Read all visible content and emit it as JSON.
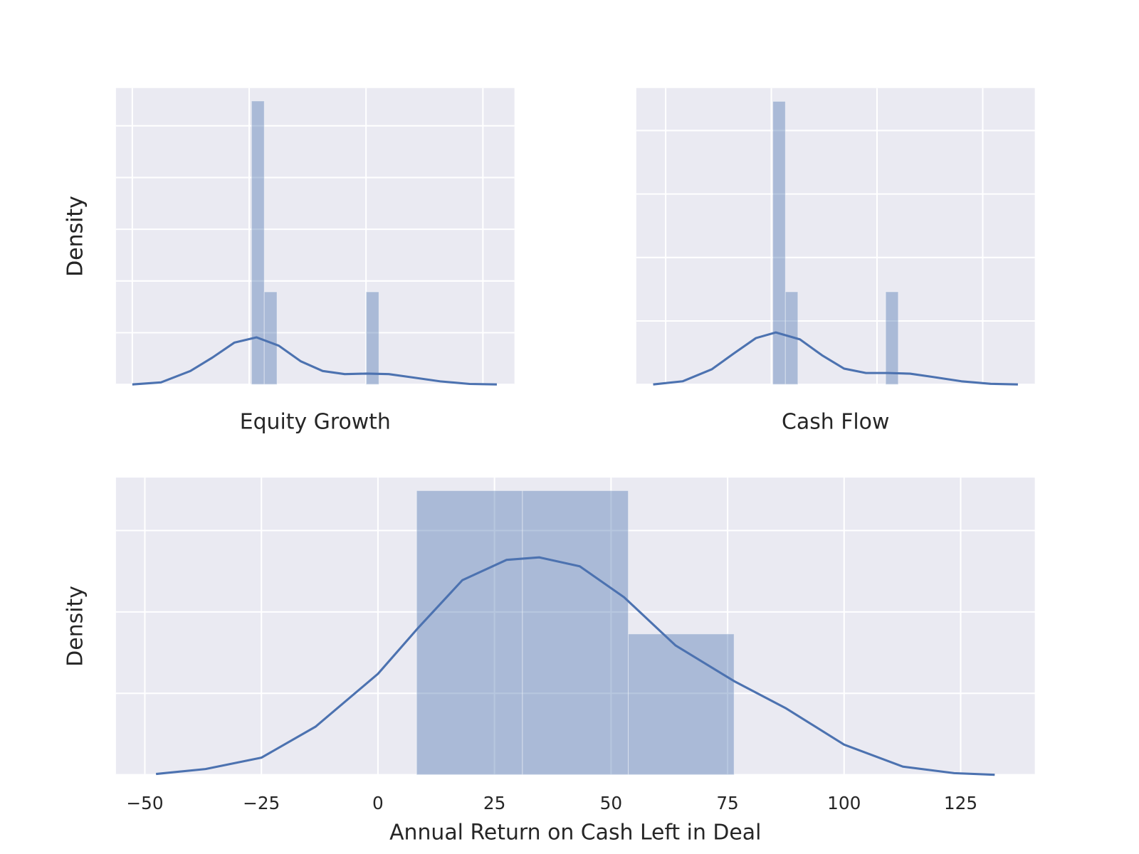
{
  "chart_data": [
    {
      "type": "histogram",
      "xlabel": "Equity Growth",
      "ylabel": "Density",
      "color": "#4c72b0",
      "grid": true,
      "tick_labels": false,
      "xlim": [
        -0.14,
        3.27
      ],
      "ylim": [
        0,
        5.73
      ],
      "xticks": [
        0,
        1,
        2,
        3
      ],
      "yticks": [
        0,
        1,
        2,
        3,
        4,
        5
      ],
      "bins": [
        1.02,
        1.129,
        1.238,
        1.347,
        1.456,
        1.565,
        1.674,
        1.783,
        1.892,
        2.001,
        2.11
      ],
      "values": [
        5.48,
        1.79,
        0,
        0,
        0,
        0,
        0,
        0,
        0,
        1.79
      ],
      "kde_x": [
        0,
        0.245,
        0.497,
        0.686,
        0.874,
        1.063,
        1.252,
        1.44,
        1.629,
        1.818,
        2.006,
        2.195,
        2.384,
        2.635,
        2.887,
        3.119
      ],
      "kde_y": [
        0,
        0.04,
        0.26,
        0.52,
        0.81,
        0.91,
        0.75,
        0.45,
        0.26,
        0.2,
        0.21,
        0.2,
        0.14,
        0.06,
        0.01,
        0
      ]
    },
    {
      "type": "histogram",
      "xlabel": "Cash Flow",
      "ylabel": "Density",
      "color": "#4c72b0",
      "grid": true,
      "tick_labels": false,
      "xlim": [
        -0.278,
        3.493
      ],
      "ylim": [
        0,
        4.67
      ],
      "xticks": [
        0,
        1,
        2,
        3
      ],
      "yticks": [
        0,
        1,
        2,
        3,
        4
      ],
      "bins": [
        1.014,
        1.133,
        1.251,
        1.37,
        1.489,
        1.608,
        1.726,
        1.845,
        1.964,
        2.082,
        2.201
      ],
      "values": [
        4.46,
        1.46,
        0,
        0,
        0,
        0,
        0,
        0,
        0,
        1.46
      ],
      "kde_x": [
        -0.118,
        0.16,
        0.438,
        0.646,
        0.854,
        1.042,
        1.271,
        1.479,
        1.688,
        1.896,
        2.104,
        2.313,
        2.521,
        2.799,
        3.076,
        3.333
      ],
      "kde_y": [
        0,
        0.05,
        0.24,
        0.49,
        0.73,
        0.82,
        0.71,
        0.46,
        0.25,
        0.18,
        0.18,
        0.17,
        0.12,
        0.05,
        0.01,
        0
      ]
    },
    {
      "type": "histogram",
      "xlabel": "Annual Return on Cash Left in Deal",
      "ylabel": "Density",
      "color": "#4c72b0",
      "grid": true,
      "tick_labels": true,
      "xlim": [
        -56.2,
        140.9
      ],
      "ylim": [
        0,
        3.65
      ],
      "xticks": [
        {
          "value": -50,
          "label": "−50"
        },
        {
          "value": -25,
          "label": "−25"
        },
        0,
        25,
        50,
        75,
        100,
        125
      ],
      "yticks": [
        0,
        1,
        2,
        3
      ],
      "bins": [
        8.3,
        31.0,
        53.7,
        76.4
      ],
      "values": [
        3.49,
        3.49,
        1.73
      ],
      "kde_x": [
        -47.6,
        -37.0,
        -25.0,
        -13.4,
        0,
        8.7,
        18.1,
        27.6,
        34.6,
        43.3,
        52.8,
        63.8,
        76.4,
        87.4,
        100,
        112.6,
        123.6,
        132.3
      ],
      "kde_y": [
        0.01,
        0.07,
        0.21,
        0.59,
        1.24,
        1.81,
        2.39,
        2.64,
        2.67,
        2.56,
        2.18,
        1.59,
        1.15,
        0.82,
        0.37,
        0.1,
        0.02,
        0
      ]
    }
  ]
}
